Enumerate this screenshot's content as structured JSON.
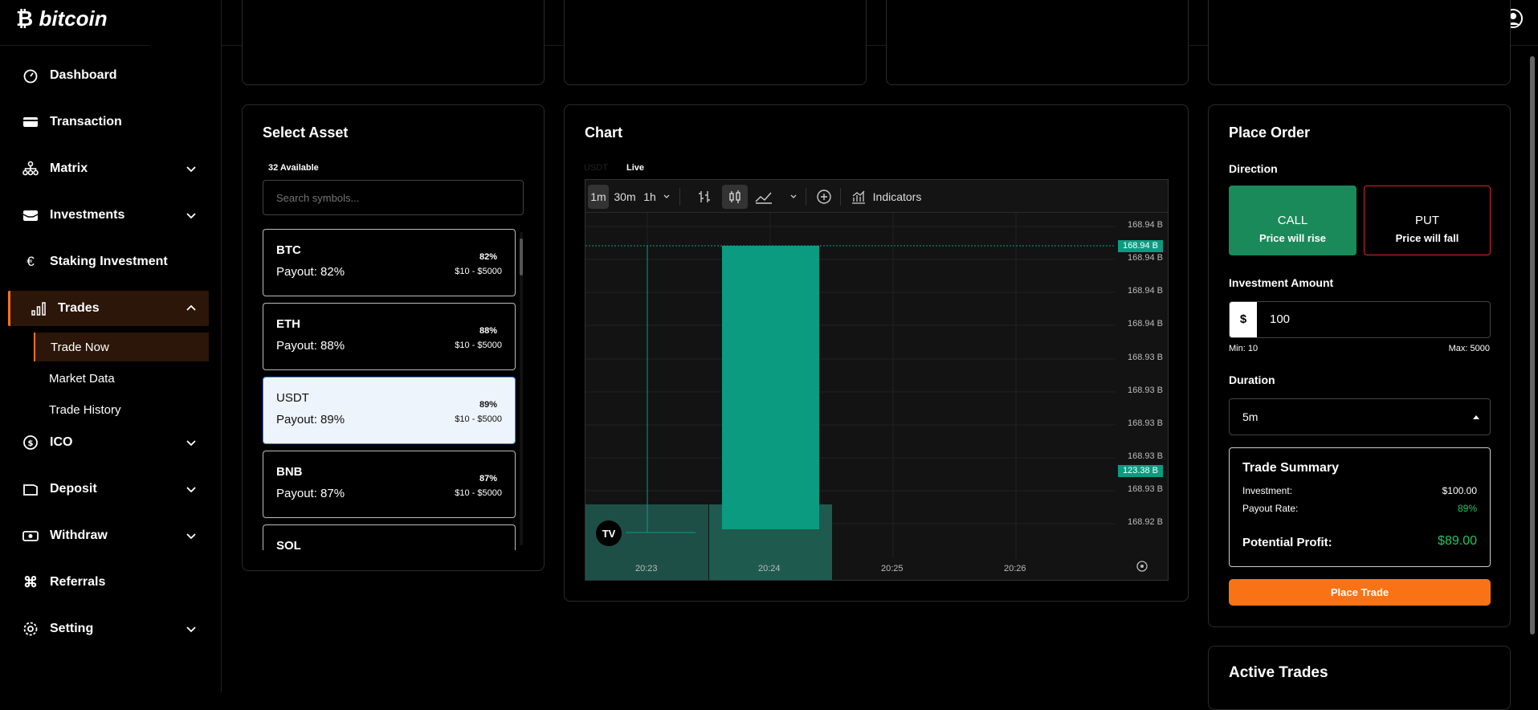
{
  "app": {
    "logo": "bitcoin"
  },
  "sidebar": {
    "items": [
      {
        "label": "Dashboard",
        "icon": "gauge-icon"
      },
      {
        "label": "Transaction",
        "icon": "card-icon"
      },
      {
        "label": "Matrix",
        "icon": "network-icon"
      },
      {
        "label": "Investments",
        "icon": "wallet-icon"
      },
      {
        "label": "Staking Investment",
        "icon": "euro-icon"
      },
      {
        "label": "Trades",
        "icon": "bars-icon"
      },
      {
        "label": "ICO",
        "icon": "coin-icon"
      },
      {
        "label": "Deposit",
        "icon": "folder-icon"
      },
      {
        "label": "Withdraw",
        "icon": "cash-icon"
      },
      {
        "label": "Referrals",
        "icon": "command-icon"
      },
      {
        "label": "Setting",
        "icon": "gear-icon"
      }
    ],
    "trades_sub": [
      "Trade Now",
      "Market Data",
      "Trade History"
    ],
    "accent": "#f97316"
  },
  "select_asset": {
    "title": "Select Asset",
    "available": "32 Available",
    "search_placeholder": "Search symbols...",
    "assets": [
      {
        "symbol": "BTC",
        "payout": "Payout: 82%",
        "percent": "82%",
        "range": "$10 - $5000"
      },
      {
        "symbol": "ETH",
        "payout": "Payout: 88%",
        "percent": "88%",
        "range": "$10 - $5000"
      },
      {
        "symbol": "USDT",
        "payout": "Payout: 89%",
        "percent": "89%",
        "range": "$10 - $5000"
      },
      {
        "symbol": "BNB",
        "payout": "Payout: 87%",
        "percent": "87%",
        "range": "$10 - $5000"
      },
      {
        "symbol": "SOL"
      }
    ]
  },
  "chart_panel": {
    "title": "Chart",
    "symbol": "USDT",
    "live": "Live",
    "toolbar": {
      "intervals": [
        "1m",
        "30m",
        "1h"
      ],
      "indicators": "Indicators"
    },
    "y_ticks": [
      "168.94 B",
      "168.94 B",
      "168.94 B",
      "168.94 B",
      "168.93 B",
      "168.93 B",
      "168.93 B",
      "168.93 B",
      "168.93 B",
      "168.92 B"
    ],
    "price_tag": "168.94 B",
    "volume_tag": "123.38 B",
    "x_ticks": [
      "20:23",
      "20:24",
      "20:25",
      "20:26"
    ],
    "candle_color": "#0b9b81"
  },
  "chart_data": {
    "type": "candlestick",
    "x": [
      "20:24"
    ],
    "last_price": "168.94 B",
    "volume": "123.38 B"
  },
  "place_order": {
    "title": "Place Order",
    "direction_label": "Direction",
    "call": {
      "label": "CALL",
      "sub": "Price will rise",
      "color": "#1a8a5a"
    },
    "put": {
      "label": "PUT",
      "sub": "Price will fall",
      "color": "#dc2626"
    },
    "amount_label": "Investment Amount",
    "currency": "$",
    "amount": "100",
    "min": "Min: 10",
    "max": "Max: 5000",
    "duration_label": "Duration",
    "duration": "5m",
    "summary": {
      "title": "Trade Summary",
      "investment_label": "Investment:",
      "investment_value": "$100.00",
      "payout_label": "Payout Rate:",
      "payout_value": "89%",
      "profit_label": "Potential Profit:",
      "profit_value": "$89.00"
    },
    "place_button": "Place Trade"
  },
  "active_trades": {
    "title": "Active Trades"
  }
}
